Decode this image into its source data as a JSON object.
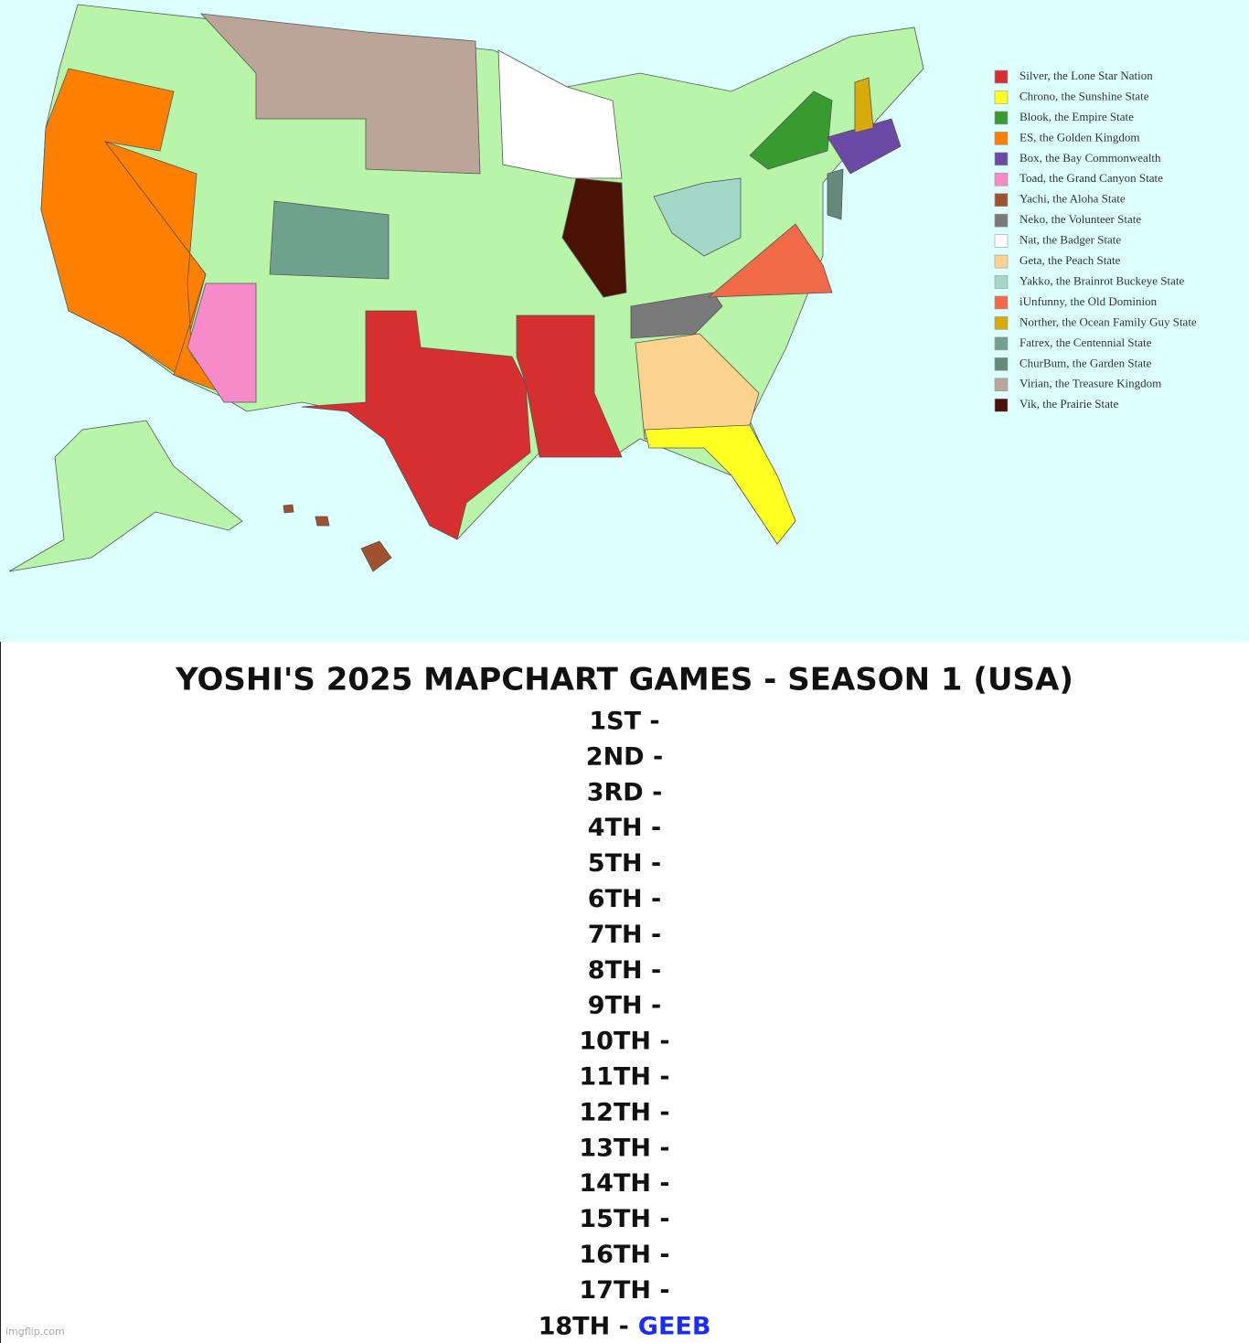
{
  "legend": [
    {
      "label": "Silver, the Lone Star Nation",
      "color": "#d62f2f"
    },
    {
      "label": "Chrono, the Sunshine State",
      "color": "#ffff22"
    },
    {
      "label": "Blook, the Empire State",
      "color": "#3a9a32"
    },
    {
      "label": "ES, the Golden Kingdom",
      "color": "#ff8000"
    },
    {
      "label": "Box, the Bay Commonwealth",
      "color": "#6a4aa6"
    },
    {
      "label": "Toad, the Grand Canyon State",
      "color": "#f78ac8"
    },
    {
      "label": "Yachi, the Aloha State",
      "color": "#a0522d"
    },
    {
      "label": "Neko, the Volunteer State",
      "color": "#7a7a7a"
    },
    {
      "label": "Nat, the Badger State",
      "color": "#ffffff"
    },
    {
      "label": "Geta, the Peach State",
      "color": "#fbd38f"
    },
    {
      "label": "Yakko, the Brainrot Buckeye State",
      "color": "#a3d8c8"
    },
    {
      "label": "iUnfunny, the Old Dominion",
      "color": "#f06a47"
    },
    {
      "label": "Norther, the Ocean Family Guy State",
      "color": "#d9aa0c"
    },
    {
      "label": "Fatrex, the Centennial State",
      "color": "#6fa28e"
    },
    {
      "label": "ChurBum, the Garden State",
      "color": "#658a7b"
    },
    {
      "label": "Virian, the Treasure Kingdom",
      "color": "#bba598"
    },
    {
      "label": "Vik, the Prairie State",
      "color": "#4a1205"
    }
  ],
  "title": "YOSHI'S 2025 MAPCHART GAMES - SEASON 1 (USA)",
  "rankings": [
    "1ST -",
    "2ND -",
    "3RD -",
    "4TH -",
    "5TH -",
    "6TH -",
    "7TH -",
    "8TH -",
    "9TH -",
    "10TH -",
    "11TH -",
    "12TH -",
    "13TH -",
    "14TH -",
    "15TH -",
    "16TH -",
    "17TH -",
    "18TH -"
  ],
  "winner_18th": "GEEB",
  "watermark": "imgflip.com"
}
